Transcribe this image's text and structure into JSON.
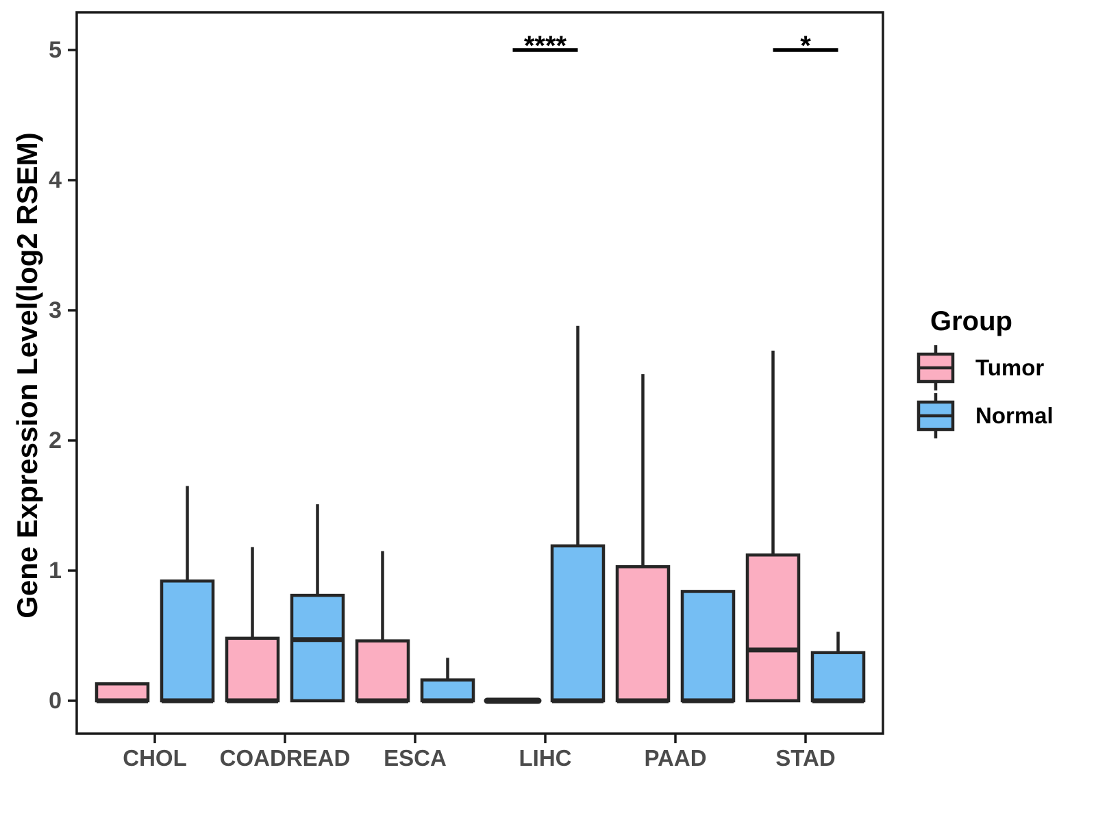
{
  "figure": {
    "background": "#ffffff"
  },
  "chart_data": {
    "type": "boxplot",
    "title": "",
    "xlabel": "",
    "ylabel": "Gene Expression Level(log2 RSEM)",
    "legend_title": "Group",
    "legend_position": "right",
    "grid": false,
    "ylim": [
      0,
      5.3
    ],
    "yticks": [
      0,
      1,
      2,
      3,
      4,
      5
    ],
    "categories": [
      "CHOL",
      "COADREAD",
      "ESCA",
      "LIHC",
      "PAAD",
      "STAD"
    ],
    "groups": [
      {
        "name": "Tumor",
        "fill": "#FBAEC1"
      },
      {
        "name": "Normal",
        "fill": "#75BEF3"
      }
    ],
    "boxes": [
      {
        "category": "CHOL",
        "group": "Tumor",
        "q1": 0,
        "median": 0,
        "q3": 0.13,
        "whisker_low": 0,
        "whisker_high": null
      },
      {
        "category": "CHOL",
        "group": "Normal",
        "q1": 0,
        "median": 0,
        "q3": 0.92,
        "whisker_low": 0,
        "whisker_high": 1.65
      },
      {
        "category": "COADREAD",
        "group": "Tumor",
        "q1": 0,
        "median": 0,
        "q3": 0.48,
        "whisker_low": 0,
        "whisker_high": 1.18
      },
      {
        "category": "COADREAD",
        "group": "Normal",
        "q1": 0,
        "median": 0.47,
        "q3": 0.81,
        "whisker_low": 0,
        "whisker_high": 1.51
      },
      {
        "category": "ESCA",
        "group": "Tumor",
        "q1": 0,
        "median": 0,
        "q3": 0.46,
        "whisker_low": 0,
        "whisker_high": 1.15
      },
      {
        "category": "ESCA",
        "group": "Normal",
        "q1": 0,
        "median": 0,
        "q3": 0.16,
        "whisker_low": 0,
        "whisker_high": 0.33
      },
      {
        "category": "LIHC",
        "group": "Tumor",
        "q1": 0,
        "median": 0,
        "q3": 0,
        "whisker_low": 0,
        "whisker_high": null
      },
      {
        "category": "LIHC",
        "group": "Normal",
        "q1": 0,
        "median": 0,
        "q3": 1.19,
        "whisker_low": 0,
        "whisker_high": 2.88
      },
      {
        "category": "PAAD",
        "group": "Tumor",
        "q1": 0,
        "median": 0,
        "q3": 1.03,
        "whisker_low": 0,
        "whisker_high": 2.51
      },
      {
        "category": "PAAD",
        "group": "Normal",
        "q1": 0,
        "median": 0,
        "q3": 0.84,
        "whisker_low": 0,
        "whisker_high": null
      },
      {
        "category": "STAD",
        "group": "Tumor",
        "q1": 0,
        "median": 0.39,
        "q3": 1.12,
        "whisker_low": 0,
        "whisker_high": 2.69
      },
      {
        "category": "STAD",
        "group": "Normal",
        "q1": 0,
        "median": 0,
        "q3": 0.37,
        "whisker_low": 0,
        "whisker_high": 0.53
      }
    ],
    "significance": [
      {
        "category": "LIHC",
        "label": "****"
      },
      {
        "category": "STAD",
        "label": "*"
      }
    ],
    "colors": {
      "box_border": "#262626",
      "axis_line": "#1a1a1a",
      "axis_text": "#4b4b4b",
      "sig_text": "#000000"
    }
  }
}
